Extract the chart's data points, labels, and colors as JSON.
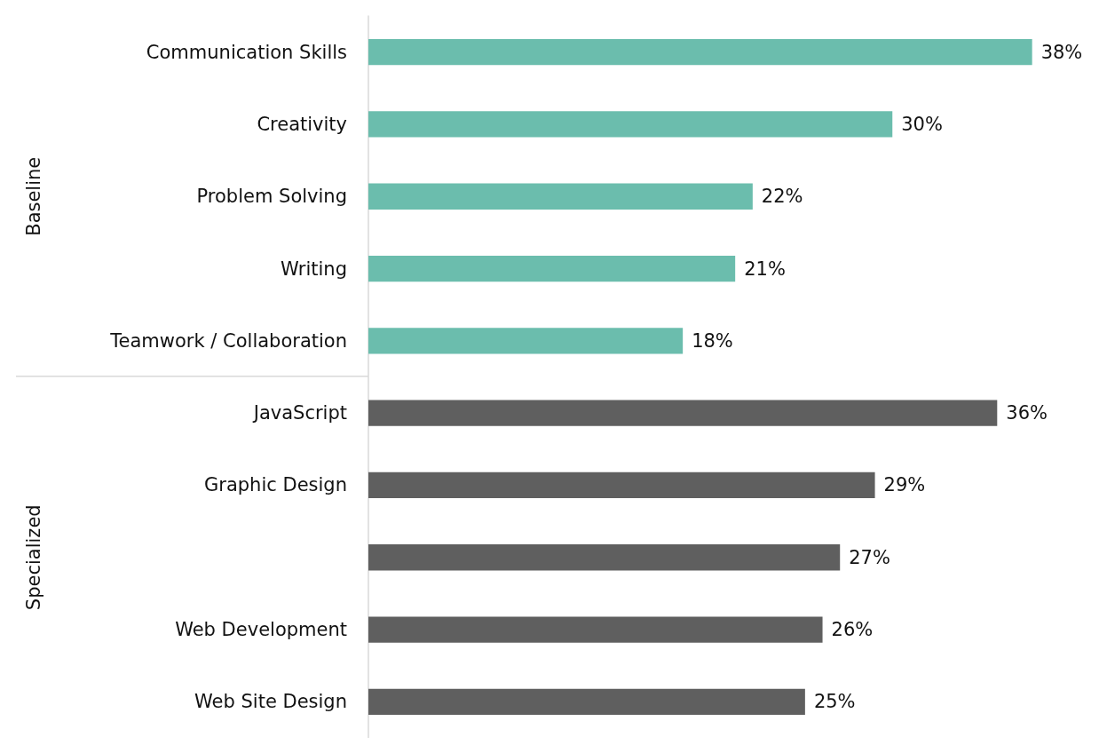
{
  "chart_data": {
    "type": "bar",
    "orientation": "horizontal",
    "categories": [
      "Communication Skills",
      "Creativity",
      "Problem Solving",
      "Writing",
      "Teamwork / Collaboration",
      "JavaScript",
      "Graphic Design",
      null,
      "Web Development",
      "Web Site Design"
    ],
    "series": [
      {
        "color": "#6bbdad",
        "values": [
          38,
          30,
          22,
          21,
          18,
          null,
          null,
          null,
          null,
          null
        ],
        "value_labels": [
          "38%",
          "30%",
          "22%",
          "21%",
          "18%",
          null,
          null,
          null,
          null,
          null
        ]
      },
      {
        "color": "#5f5f5f",
        "values": [
          null,
          null,
          null,
          null,
          null,
          36,
          29,
          27,
          26,
          25
        ],
        "value_labels": [
          null,
          null,
          null,
          null,
          null,
          "36%",
          "29%",
          "27%",
          "26%",
          "25%"
        ]
      }
    ],
    "annotations": [
      "Baseline",
      "Specialized"
    ]
  }
}
